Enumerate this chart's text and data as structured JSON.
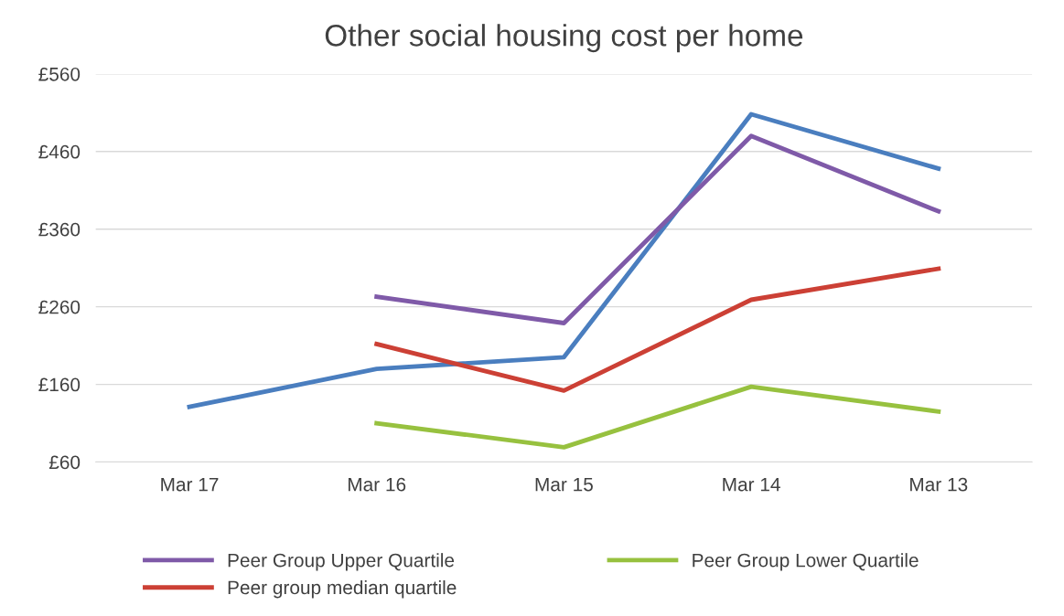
{
  "chart_data": {
    "type": "line",
    "title": "Other social housing cost per home",
    "categories": [
      "Mar 17",
      "Mar 16",
      "Mar 15",
      "Mar 14",
      "Mar 13"
    ],
    "series": [
      {
        "color": "#4a7ebf",
        "values": [
          131,
          180,
          195,
          508,
          438
        ]
      },
      {
        "name": "Peer Group Upper Quartile",
        "color": "#7f5aa8",
        "values": [
          null,
          273,
          239,
          480,
          383
        ]
      },
      {
        "name": "Peer group median quartile",
        "color": "#cc4035",
        "values": [
          null,
          212,
          152,
          269,
          309
        ]
      },
      {
        "name": "Peer Group Lower Quartile",
        "color": "#97c13f",
        "values": [
          null,
          110,
          79,
          157,
          125
        ]
      }
    ],
    "ylim": [
      60,
      560
    ],
    "yticks": [
      {
        "value": 60,
        "label": "£60"
      },
      {
        "value": 160,
        "label": "£160"
      },
      {
        "value": 260,
        "label": "£260"
      },
      {
        "value": 360,
        "label": "£360"
      },
      {
        "value": 460,
        "label": "£460"
      },
      {
        "value": 560,
        "label": "£560"
      }
    ],
    "grid": "y",
    "legend": "bottom",
    "marker": "none",
    "line_style": "solid"
  }
}
